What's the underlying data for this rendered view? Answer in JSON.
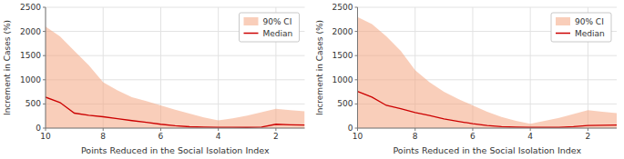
{
  "chart_data": [
    {
      "type": "line",
      "xlabel": "Points Reduced in the Social Isolation Index",
      "ylabel": "Increment in Cases (%)",
      "x": [
        10,
        9.5,
        9,
        8.5,
        8,
        7.5,
        7,
        6.5,
        6,
        5.5,
        5,
        4.5,
        4,
        3.5,
        3,
        2.5,
        2,
        1.5,
        1
      ],
      "series": [
        {
          "name": "90% CI",
          "type": "area",
          "color": "#f4a582",
          "values": [
            2100,
            1900,
            1600,
            1300,
            950,
            780,
            640,
            560,
            470,
            380,
            300,
            220,
            160,
            200,
            260,
            330,
            400,
            370,
            350
          ],
          "lower": [
            0,
            0,
            0,
            0,
            0,
            0,
            0,
            0,
            0,
            0,
            0,
            0,
            0,
            0,
            0,
            0,
            0,
            0,
            0
          ]
        },
        {
          "name": "Median",
          "type": "line",
          "color": "#cc0000",
          "values": [
            640,
            530,
            310,
            265,
            235,
            195,
            155,
            120,
            80,
            50,
            28,
            20,
            18,
            15,
            14,
            20,
            80,
            70,
            65
          ]
        }
      ],
      "xlim": [
        10,
        1
      ],
      "xticks": [
        2,
        4,
        6,
        8,
        10
      ],
      "ylim": [
        0,
        2500
      ],
      "yticks": [
        0,
        500,
        1000,
        1500,
        2000,
        2500
      ],
      "grid": true,
      "legend": "upper right"
    },
    {
      "type": "line",
      "xlabel": "Points Reduced in the Social Isolation Index",
      "ylabel": "Increment in Cases (%)",
      "x": [
        10,
        9.5,
        9,
        8.5,
        8,
        7.5,
        7,
        6.5,
        6,
        5.5,
        5,
        4.5,
        4,
        3.5,
        3,
        2.5,
        2,
        1.5,
        1
      ],
      "series": [
        {
          "name": "90% CI",
          "type": "area",
          "color": "#f4a582",
          "values": [
            2300,
            2150,
            1900,
            1600,
            1200,
            950,
            750,
            600,
            470,
            340,
            230,
            150,
            90,
            150,
            210,
            290,
            370,
            340,
            310
          ],
          "lower": [
            0,
            0,
            0,
            0,
            0,
            0,
            0,
            0,
            0,
            0,
            0,
            0,
            0,
            0,
            0,
            0,
            0,
            0,
            0
          ]
        },
        {
          "name": "Median",
          "type": "line",
          "color": "#cc0000",
          "values": [
            760,
            640,
            470,
            400,
            320,
            260,
            190,
            140,
            90,
            55,
            30,
            22,
            18,
            16,
            15,
            30,
            55,
            60,
            65
          ]
        }
      ],
      "xlim": [
        10,
        1
      ],
      "xticks": [
        2,
        4,
        6,
        8,
        10
      ],
      "ylim": [
        0,
        2500
      ],
      "yticks": [
        0,
        500,
        1000,
        1500,
        2000,
        2500
      ],
      "grid": true,
      "legend": "upper right"
    }
  ]
}
